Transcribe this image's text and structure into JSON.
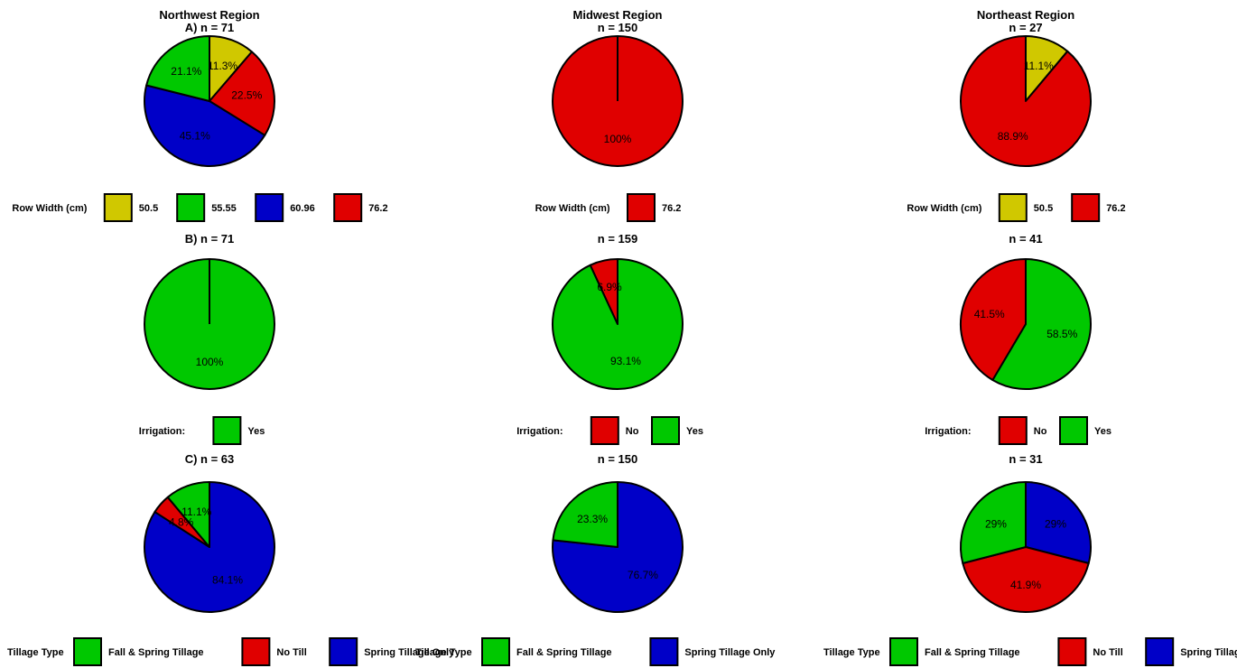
{
  "colors": {
    "yellow": "#D0C800",
    "green": "#00C800",
    "blue": "#0000C8",
    "red": "#E00000"
  },
  "regions": [
    "Northwest Region",
    "Midwest Region",
    "Northeast Region"
  ],
  "legend_titles": {
    "row_width": "Row Width (cm)",
    "irrigation": "Irrigation:",
    "tillage": "Tillage Type"
  },
  "chart_data": [
    {
      "type": "pie",
      "region": "Northwest Region",
      "panel": "A)",
      "n_label": "n = 71",
      "legend_title": "Row Width (cm)",
      "slices": [
        {
          "label": "50.5",
          "value": 11.3,
          "text": "11.3%",
          "color": "yellow"
        },
        {
          "label": "76.2",
          "value": 22.5,
          "text": "22.5%",
          "color": "red"
        },
        {
          "label": "60.96",
          "value": 45.1,
          "text": "45.1%",
          "color": "blue"
        },
        {
          "label": "55.55",
          "value": 21.1,
          "text": "21.1%",
          "color": "green"
        }
      ],
      "legend": [
        {
          "label": "50.5",
          "color": "yellow"
        },
        {
          "label": "55.55",
          "color": "green"
        },
        {
          "label": "60.96",
          "color": "blue"
        },
        {
          "label": "76.2",
          "color": "red"
        }
      ]
    },
    {
      "type": "pie",
      "region": "Midwest Region",
      "panel": "",
      "n_label": "n = 150",
      "legend_title": "Row Width (cm)",
      "slices": [
        {
          "label": "76.2",
          "value": 100,
          "text": "100%",
          "color": "red"
        }
      ],
      "legend": [
        {
          "label": "76.2",
          "color": "red"
        }
      ]
    },
    {
      "type": "pie",
      "region": "Northeast Region",
      "panel": "",
      "n_label": "n = 27",
      "legend_title": "Row Width (cm)",
      "slices": [
        {
          "label": "50.5",
          "value": 11.1,
          "text": "11.1%",
          "color": "yellow"
        },
        {
          "label": "76.2",
          "value": 88.9,
          "text": "88.9%",
          "color": "red"
        }
      ],
      "legend": [
        {
          "label": "50.5",
          "color": "yellow"
        },
        {
          "label": "76.2",
          "color": "red"
        }
      ]
    },
    {
      "type": "pie",
      "region": "Northwest Region",
      "panel": "B)",
      "n_label": "n = 71",
      "legend_title": "Irrigation:",
      "slices": [
        {
          "label": "Yes",
          "value": 100,
          "text": "100%",
          "color": "green"
        }
      ],
      "legend": [
        {
          "label": "Yes",
          "color": "green"
        }
      ]
    },
    {
      "type": "pie",
      "region": "Midwest Region",
      "panel": "",
      "n_label": "n = 159",
      "legend_title": "Irrigation:",
      "slices": [
        {
          "label": "Yes",
          "value": 93.1,
          "text": "93.1%",
          "color": "green"
        },
        {
          "label": "No",
          "value": 6.9,
          "text": "6.9%",
          "color": "red"
        }
      ],
      "legend": [
        {
          "label": "No",
          "color": "red"
        },
        {
          "label": "Yes",
          "color": "green"
        }
      ]
    },
    {
      "type": "pie",
      "region": "Northeast Region",
      "panel": "",
      "n_label": "n = 41",
      "legend_title": "Irrigation:",
      "slices": [
        {
          "label": "Yes",
          "value": 58.5,
          "text": "58.5%",
          "color": "green"
        },
        {
          "label": "No",
          "value": 41.5,
          "text": "41.5%",
          "color": "red"
        }
      ],
      "legend": [
        {
          "label": "No",
          "color": "red"
        },
        {
          "label": "Yes",
          "color": "green"
        }
      ]
    },
    {
      "type": "pie",
      "region": "Northwest Region",
      "panel": "C)",
      "n_label": "n = 63",
      "legend_title": "Tillage Type",
      "slices": [
        {
          "label": "Spring Tillage Only",
          "value": 84.1,
          "text": "84.1%",
          "color": "blue"
        },
        {
          "label": "No Till",
          "value": 4.8,
          "text": "4.8%",
          "color": "red"
        },
        {
          "label": "Fall & Spring Tillage",
          "value": 11.1,
          "text": "11.1%",
          "color": "green"
        }
      ],
      "legend": [
        {
          "label": "Fall & Spring Tillage",
          "color": "green"
        },
        {
          "label": "No Till",
          "color": "red"
        },
        {
          "label": "Spring Tillage Only",
          "color": "blue"
        }
      ]
    },
    {
      "type": "pie",
      "region": "Midwest Region",
      "panel": "",
      "n_label": "n = 150",
      "legend_title": "Tillage Type",
      "slices": [
        {
          "label": "Spring Tillage Only",
          "value": 76.7,
          "text": "76.7%",
          "color": "blue"
        },
        {
          "label": "Fall & Spring Tillage",
          "value": 23.3,
          "text": "23.3%",
          "color": "green"
        }
      ],
      "legend": [
        {
          "label": "Fall & Spring Tillage",
          "color": "green"
        },
        {
          "label": "Spring Tillage Only",
          "color": "blue"
        }
      ]
    },
    {
      "type": "pie",
      "region": "Northeast Region",
      "panel": "",
      "n_label": "n = 31",
      "legend_title": "Tillage Type",
      "slices": [
        {
          "label": "Spring Tillage Only",
          "value": 29,
          "text": "29%",
          "color": "blue"
        },
        {
          "label": "No Till",
          "value": 41.9,
          "text": "41.9%",
          "color": "red"
        },
        {
          "label": "Fall & Spring Tillage",
          "value": 29,
          "text": "29%",
          "color": "green"
        }
      ],
      "legend": [
        {
          "label": "Fall & Spring Tillage",
          "color": "green"
        },
        {
          "label": "No Till",
          "color": "red"
        },
        {
          "label": "Spring Tillage Only",
          "color": "blue"
        }
      ]
    }
  ]
}
